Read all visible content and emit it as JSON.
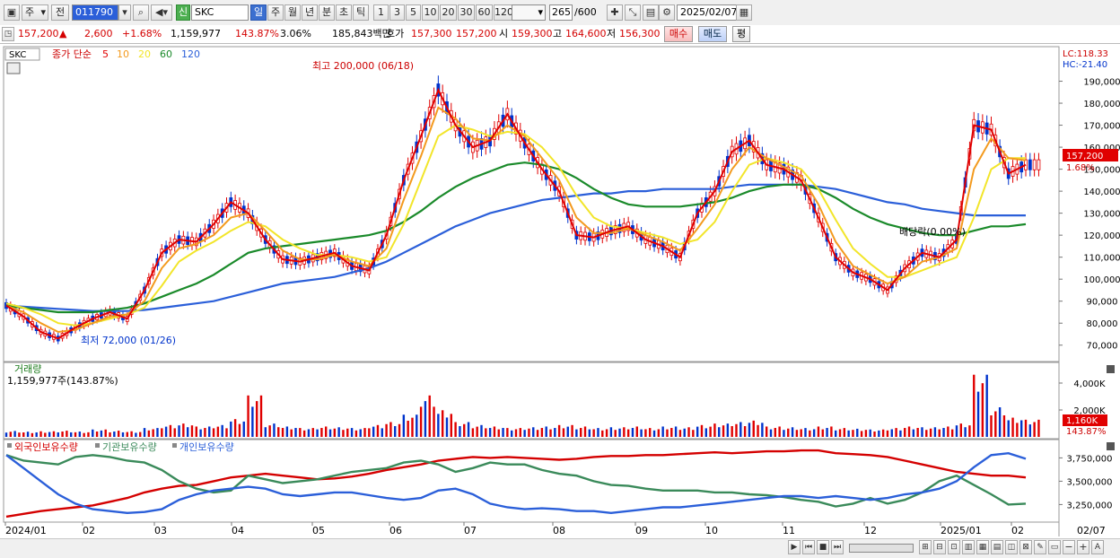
{
  "toolbar": {
    "period_label": "주",
    "prev_label": "전",
    "code": "011790",
    "stock_badge": "신",
    "stock_name": "SKC",
    "intervals": [
      "일",
      "주",
      "월",
      "년",
      "분",
      "초",
      "틱"
    ],
    "interval_selected": "일",
    "minute_options": [
      "1",
      "3",
      "5",
      "10",
      "20",
      "30",
      "60",
      "120"
    ],
    "count_value": "265",
    "count_total": "/600",
    "date": "2025/02/07"
  },
  "quote": {
    "price": "157,200",
    "arrow": "▲",
    "change": "2,600",
    "change_pct": "+1.68%",
    "volume": "1,159,977",
    "volume_pct": "143.87%",
    "turnover": "3.06%",
    "amount": "185,843백만",
    "ask_label": "호가",
    "ask": "157,300",
    "bid": "157,200",
    "open_label": "시",
    "open": "159,300",
    "high_label": "고",
    "high": "164,600",
    "low_label": "저",
    "low": "156,300",
    "buy_label": "매수",
    "sell_label": "매도",
    "eval_label": "평"
  },
  "legend": {
    "ticker": "SKC",
    "ma_title": "종가 단순",
    "ma_periods": [
      "5",
      "10",
      "20",
      "60",
      "120"
    ],
    "lc": "LC:118.33",
    "hc": "HC:-21.40"
  },
  "annotations": {
    "high_marker": "최고 200,000 (06/18)",
    "low_marker": "최저 72,000 (01/26)",
    "dividend": "배당락(0.00%)"
  },
  "right_labels": {
    "price_box": "157,200",
    "pct_box": "1.68%",
    "volume_box": "1,160K",
    "volume_pct_box": "143.87%"
  },
  "volume_panel": {
    "title": "거래량",
    "readout": "1,159,977주(143.87%)"
  },
  "holdings_panel": {
    "series_titles": [
      "외국인보유수량",
      "기관보유수량",
      "개인보유수량"
    ]
  },
  "colors": {
    "ma5": "#e00000",
    "ma10": "#f39a1e",
    "ma20": "#f2e52a",
    "ma60": "#1a8a2a",
    "ma120": "#2b5fd9",
    "up": "#e00000",
    "down": "#0033cc",
    "foreign": "#d40000",
    "inst": "#3a8a5a",
    "individual": "#2b5fd9"
  },
  "chart_data": [
    {
      "type": "line",
      "title": "SKC",
      "x_ticks": [
        "2024/01",
        "02",
        "03",
        "04",
        "05",
        "06",
        "07",
        "08",
        "09",
        "10",
        "11",
        "12",
        "2025/01",
        "02",
        "02/07"
      ],
      "y_ticks": [
        "190,000",
        "180,000",
        "170,000",
        "160,000",
        "150,000",
        "140,000",
        "130,000",
        "120,000",
        "110,000",
        "100,000",
        "90,000",
        "80,000",
        "70,000"
      ],
      "ylim": [
        65000,
        200000
      ],
      "series": [
        {
          "name": "5",
          "values": [
            88000,
            83000,
            76000,
            73000,
            78000,
            82000,
            85000,
            82000,
            95000,
            112000,
            118000,
            117000,
            125000,
            135000,
            130000,
            118000,
            109000,
            108000,
            110000,
            112000,
            106000,
            104000,
            120000,
            145000,
            165000,
            186000,
            170000,
            160000,
            163000,
            175000,
            162000,
            150000,
            140000,
            120000,
            119000,
            122000,
            124000,
            118000,
            115000,
            110000,
            130000,
            140000,
            158000,
            163000,
            152000,
            150000,
            145000,
            128000,
            110000,
            103000,
            100000,
            95000,
            105000,
            112000,
            110000,
            118000,
            170000,
            168000,
            148000,
            152000
          ]
        },
        {
          "name": "10",
          "values": [
            88000,
            85000,
            80000,
            76000,
            77000,
            80000,
            83000,
            84000,
            90000,
            105000,
            114000,
            116000,
            120000,
            128000,
            130000,
            122000,
            113000,
            109000,
            109000,
            111000,
            108000,
            106000,
            114000,
            136000,
            156000,
            178000,
            173000,
            164000,
            163000,
            170000,
            165000,
            155000,
            145000,
            128000,
            121000,
            121000,
            123000,
            120000,
            117000,
            113000,
            123000,
            134000,
            150000,
            160000,
            155000,
            151000,
            147000,
            134000,
            117000,
            106000,
            102000,
            98000,
            101000,
            108000,
            110000,
            114000,
            150000,
            164000,
            155000,
            154000
          ]
        },
        {
          "name": "20",
          "values": [
            89000,
            87000,
            84000,
            80000,
            79000,
            80000,
            82000,
            84000,
            87000,
            97000,
            108000,
            113000,
            117000,
            122000,
            126000,
            124000,
            118000,
            114000,
            111000,
            111000,
            110000,
            108000,
            110000,
            125000,
            145000,
            165000,
            170000,
            168000,
            165000,
            167000,
            166000,
            160000,
            151000,
            138000,
            128000,
            124000,
            123000,
            121000,
            119000,
            116000,
            118000,
            126000,
            140000,
            152000,
            155000,
            153000,
            150000,
            141000,
            127000,
            114000,
            107000,
            101000,
            101000,
            104000,
            107000,
            110000,
            128000,
            150000,
            155000,
            155000
          ]
        },
        {
          "name": "60",
          "values": [
            88000,
            87000,
            86000,
            85000,
            85000,
            85000,
            86000,
            87000,
            89000,
            92000,
            95000,
            98000,
            102000,
            107000,
            112000,
            114000,
            115000,
            116000,
            117000,
            118000,
            119000,
            120000,
            122000,
            126000,
            131000,
            137000,
            142000,
            146000,
            149000,
            152000,
            153000,
            152000,
            150000,
            146000,
            141000,
            137000,
            134000,
            133000,
            133000,
            133000,
            134000,
            135000,
            137000,
            140000,
            142000,
            143000,
            143000,
            141000,
            137000,
            132000,
            128000,
            125000,
            123000,
            121000,
            120000,
            120000,
            122000,
            124000,
            124000,
            125000
          ]
        },
        {
          "name": "120",
          "values": [
            88000,
            87500,
            87000,
            86500,
            86000,
            85500,
            85500,
            85500,
            86000,
            87000,
            88000,
            89000,
            90000,
            92000,
            94000,
            96000,
            98000,
            99000,
            100000,
            101000,
            103000,
            105000,
            108000,
            112000,
            116000,
            120000,
            124000,
            127000,
            130000,
            132000,
            134000,
            136000,
            137000,
            138000,
            139000,
            139000,
            140000,
            140000,
            141000,
            141000,
            141000,
            141000,
            142000,
            143000,
            143000,
            143000,
            143000,
            142000,
            141000,
            139000,
            137000,
            135000,
            134000,
            132000,
            131000,
            130000,
            129000,
            129000,
            129000,
            129000
          ]
        }
      ]
    },
    {
      "type": "bar",
      "title": "거래량",
      "y_ticks": [
        "4,000K",
        "2,000K"
      ],
      "ylim": [
        0,
        5000
      ],
      "values": [
        400,
        350,
        380,
        420,
        360,
        500,
        420,
        380,
        600,
        800,
        900,
        700,
        800,
        1200,
        2800,
        900,
        700,
        600,
        700,
        650,
        600,
        800,
        1000,
        1500,
        2800,
        1800,
        1000,
        800,
        700,
        600,
        650,
        700,
        800,
        700,
        600,
        650,
        700,
        600,
        700,
        650,
        800,
        900,
        1000,
        1100,
        700,
        650,
        600,
        700,
        600,
        550,
        500,
        600,
        700,
        650,
        700,
        900,
        4200,
        2000,
        1300,
        1160
      ]
    },
    {
      "type": "line",
      "title": "보유수량",
      "y_ticks": [
        "3,750,000",
        "3,500,000",
        "3,250,000"
      ],
      "ylim": [
        3100000,
        3850000
      ],
      "series": [
        {
          "name": "외국인보유수량",
          "values": [
            3120000,
            3150000,
            3180000,
            3200000,
            3220000,
            3240000,
            3280000,
            3320000,
            3380000,
            3420000,
            3450000,
            3460000,
            3500000,
            3540000,
            3560000,
            3580000,
            3560000,
            3540000,
            3520000,
            3530000,
            3550000,
            3580000,
            3620000,
            3650000,
            3680000,
            3720000,
            3740000,
            3760000,
            3750000,
            3760000,
            3750000,
            3740000,
            3730000,
            3740000,
            3760000,
            3770000,
            3770000,
            3780000,
            3780000,
            3790000,
            3800000,
            3810000,
            3800000,
            3810000,
            3820000,
            3820000,
            3830000,
            3830000,
            3800000,
            3790000,
            3780000,
            3760000,
            3720000,
            3680000,
            3640000,
            3600000,
            3580000,
            3560000,
            3560000,
            3540000
          ]
        },
        {
          "name": "기관보유수량",
          "values": [
            3780000,
            3720000,
            3700000,
            3680000,
            3760000,
            3780000,
            3760000,
            3720000,
            3700000,
            3620000,
            3500000,
            3420000,
            3380000,
            3400000,
            3560000,
            3520000,
            3480000,
            3500000,
            3520000,
            3560000,
            3600000,
            3620000,
            3640000,
            3700000,
            3720000,
            3680000,
            3600000,
            3640000,
            3700000,
            3680000,
            3680000,
            3620000,
            3580000,
            3560000,
            3500000,
            3460000,
            3450000,
            3420000,
            3400000,
            3400000,
            3400000,
            3380000,
            3380000,
            3360000,
            3350000,
            3330000,
            3300000,
            3280000,
            3230000,
            3260000,
            3320000,
            3260000,
            3300000,
            3380000,
            3500000,
            3560000,
            3460000,
            3360000,
            3250000,
            3260000
          ]
        },
        {
          "name": "개인보유수량",
          "values": [
            3780000,
            3640000,
            3500000,
            3360000,
            3260000,
            3200000,
            3180000,
            3160000,
            3170000,
            3200000,
            3300000,
            3360000,
            3400000,
            3420000,
            3440000,
            3420000,
            3360000,
            3340000,
            3360000,
            3380000,
            3380000,
            3350000,
            3320000,
            3300000,
            3320000,
            3400000,
            3420000,
            3360000,
            3260000,
            3220000,
            3200000,
            3210000,
            3200000,
            3180000,
            3180000,
            3160000,
            3180000,
            3200000,
            3220000,
            3220000,
            3240000,
            3260000,
            3280000,
            3300000,
            3320000,
            3340000,
            3340000,
            3320000,
            3340000,
            3320000,
            3300000,
            3320000,
            3360000,
            3380000,
            3420000,
            3500000,
            3650000,
            3780000,
            3800000,
            3740000
          ]
        }
      ]
    }
  ]
}
